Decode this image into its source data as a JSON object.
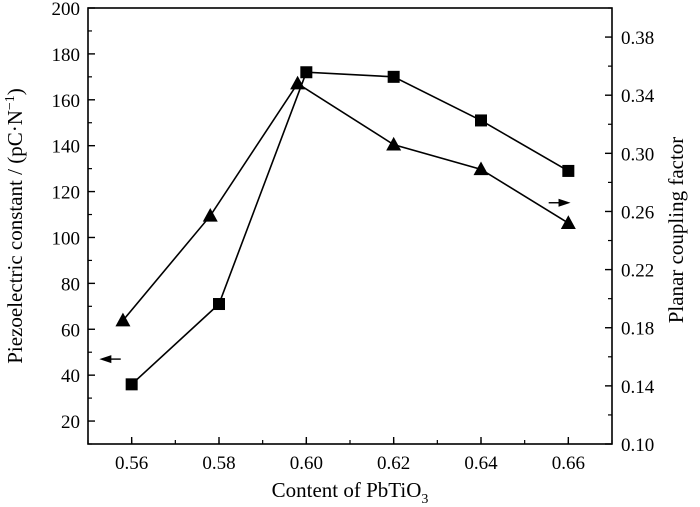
{
  "chart_data": {
    "type": "line",
    "xlabel": "Content of PbTiO",
    "xlabel_sub": "3",
    "ylabel_left": "Piezoelectric constant / (pC·N",
    "ylabel_left_sup": "−1",
    "ylabel_left_end": ")",
    "ylabel_right": "Planar coupling factor",
    "xlim": [
      0.55,
      0.67
    ],
    "ylim_left": [
      10,
      200
    ],
    "ylim_right": [
      0.1,
      0.4
    ],
    "x_ticks": [
      0.56,
      0.58,
      0.6,
      0.62,
      0.64,
      0.66
    ],
    "x_tick_labels": [
      "0.56",
      "0.58",
      "0.60",
      "0.62",
      "0.64",
      "0.66"
    ],
    "y_left_ticks": [
      20,
      40,
      60,
      80,
      100,
      120,
      140,
      160,
      180,
      200
    ],
    "y_left_tick_labels": [
      "20",
      "40",
      "60",
      "80",
      "100",
      "120",
      "140",
      "160",
      "180",
      "200"
    ],
    "y_right_ticks": [
      0.1,
      0.14,
      0.18,
      0.22,
      0.26,
      0.3,
      0.34,
      0.38
    ],
    "y_right_tick_labels": [
      "0.10",
      "0.14",
      "0.18",
      "0.22",
      "0.26",
      "0.30",
      "0.34",
      "0.38"
    ],
    "grid": false,
    "series": [
      {
        "marker": "square",
        "axis": "left",
        "x": [
          0.56,
          0.58,
          0.6,
          0.62,
          0.64,
          0.66
        ],
        "y": [
          36,
          71,
          172,
          170,
          151,
          129
        ]
      },
      {
        "marker": "triangle",
        "axis": "right",
        "x": [
          0.558,
          0.578,
          0.598,
          0.62,
          0.64,
          0.66
        ],
        "y": [
          0.185,
          0.257,
          0.348,
          0.306,
          0.289,
          0.252
        ]
      }
    ],
    "annotations": [
      {
        "type": "arrow",
        "direction": "left",
        "points_to_axis": "left"
      },
      {
        "type": "arrow",
        "direction": "right",
        "points_to_axis": "right"
      }
    ]
  }
}
